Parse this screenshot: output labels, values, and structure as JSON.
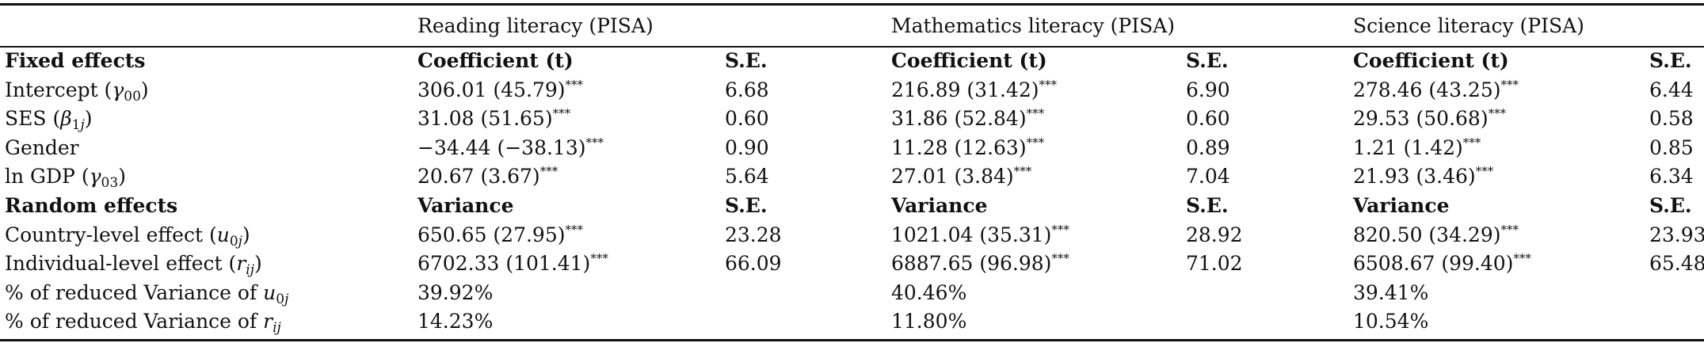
{
  "groups": [
    "Reading literacy (PISA)",
    "Mathematics literacy (PISA)",
    "Science literacy (PISA)"
  ],
  "rows": [
    {
      "bold": true,
      "cells": [
        "Fixed effects",
        "Coefficient (t)",
        "S.E.",
        "Coefficient (t)",
        "S.E.",
        "Coefficient (t)",
        "S.E."
      ]
    },
    {
      "bold": false,
      "cells": [
        "Intercept (γ00)",
        "306.01 (45.79)***",
        "6.68",
        "216.89 (31.42)***",
        "6.90",
        "278.46 (43.25)***",
        "6.44"
      ]
    },
    {
      "bold": false,
      "cells": [
        "SES (β1j)",
        "31.08 (51.65)***",
        "0.60",
        "31.86 (52.84)***",
        "0.60",
        "29.53 (50.68)***",
        "0.58"
      ]
    },
    {
      "bold": false,
      "cells": [
        "Gender",
        "−34.44 (−38.13)***",
        "0.90",
        "11.28 (12.63)***",
        "0.89",
        "1.21 (1.42)***",
        "0.85"
      ]
    },
    {
      "bold": false,
      "cells": [
        "ln GDP (γ03)",
        "20.67 (3.67)***",
        "5.64",
        "27.01 (3.84)***",
        "7.04",
        "21.93 (3.46)***",
        "6.34"
      ]
    },
    {
      "bold": true,
      "cells": [
        "Random effects",
        "Variance",
        "S.E.",
        "Variance",
        "S.E.",
        "Variance",
        "S.E."
      ]
    },
    {
      "bold": false,
      "cells": [
        "Country-level effect (u0j)",
        "650.65 (27.95)***",
        "23.28",
        "1021.04 (35.31)***",
        "28.92",
        "820.50 (34.29)***",
        "23.93"
      ]
    },
    {
      "bold": false,
      "cells": [
        "Individual-level effect (rij)",
        "6702.33 (101.41)***",
        "66.09",
        "6887.65 (96.98)***",
        "71.02",
        "6508.67 (99.40)***",
        "65.48"
      ]
    },
    {
      "bold": false,
      "cells": [
        "% of reduced Variance of u0j",
        "39.92%",
        "",
        "40.46%",
        "",
        "39.41%",
        ""
      ]
    },
    {
      "bold": false,
      "cells": [
        "% of reduced Variance of rij",
        "14.23%",
        "",
        "11.80%",
        "",
        "10.54%",
        ""
      ]
    }
  ]
}
